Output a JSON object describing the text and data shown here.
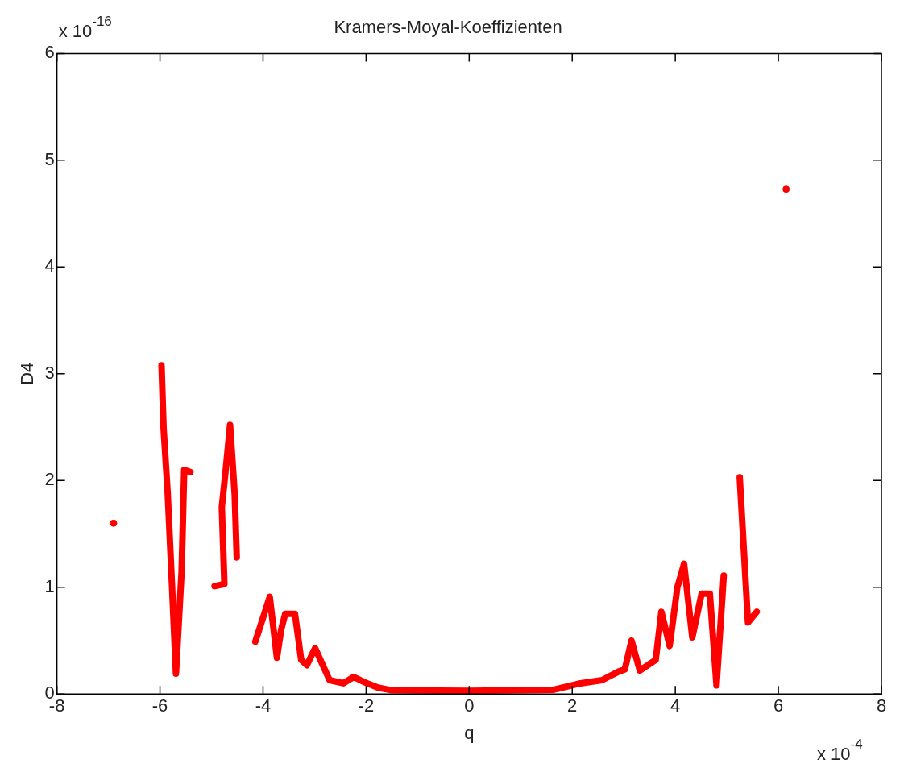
{
  "chart_data": {
    "type": "line",
    "title": "Kramers-Moyal-Koeffizienten",
    "xlabel": "q",
    "ylabel": "D4",
    "annotations": [
      "x 10$^{-16}$",
      "x 10$^{-4}$"
    ],
    "xlim": [
      -8,
      8
    ],
    "xticks": [
      -8,
      -6,
      -4,
      -2,
      0,
      2,
      4,
      6,
      8
    ],
    "ylim": [
      0,
      6
    ],
    "yticks": [
      0,
      1,
      2,
      3,
      4,
      5,
      6
    ],
    "grid": false,
    "legend": false,
    "line_style": "solid",
    "series": [
      {
        "type": "line",
        "marker": "none",
        "color": "#ff0000",
        "x": [
          -5.97,
          -5.93,
          -5.85,
          -5.77,
          -5.69,
          -5.58,
          -5.53,
          -5.41,
          -5.2,
          -4.94,
          -4.75,
          -4.8,
          -4.72,
          -4.64,
          -4.55,
          -4.51,
          -4.3,
          -4.15,
          -3.87,
          -3.73,
          -3.65,
          -3.57,
          -3.38,
          -3.26,
          -3.15,
          -2.99,
          -2.71,
          -2.44,
          -2.24,
          -2.03,
          -1.77,
          -1.5,
          0,
          1.64,
          2.16,
          2.58,
          2.9,
          3.02,
          3.15,
          3.31,
          3.62,
          3.73,
          3.89,
          4.04,
          4.17,
          4.33,
          4.51,
          4.67,
          4.8,
          4.94,
          5.1,
          5.25,
          5.33,
          5.41,
          5.58
        ],
        "values": [
          3.08,
          2.49,
          1.88,
          1.05,
          0.19,
          1.15,
          2.1,
          2.08,
          null,
          1.01,
          1.03,
          1.75,
          2.12,
          2.52,
          1.87,
          1.28,
          null,
          0.49,
          0.91,
          0.34,
          0.6,
          0.75,
          0.75,
          0.32,
          0.27,
          0.43,
          0.13,
          0.1,
          0.16,
          0.11,
          0.06,
          0.035,
          0.03,
          0.04,
          0.1,
          0.13,
          0.21,
          0.23,
          0.5,
          0.22,
          0.32,
          0.77,
          0.45,
          1.0,
          1.22,
          0.53,
          0.94,
          0.94,
          0.08,
          1.11,
          null,
          2.03,
          1.35,
          0.67,
          0.77
        ]
      },
      {
        "type": "scatter",
        "marker": "circle",
        "color": "#ff0000",
        "x": [
          -6.9,
          6.15
        ],
        "values": [
          1.6,
          4.73
        ]
      }
    ]
  }
}
